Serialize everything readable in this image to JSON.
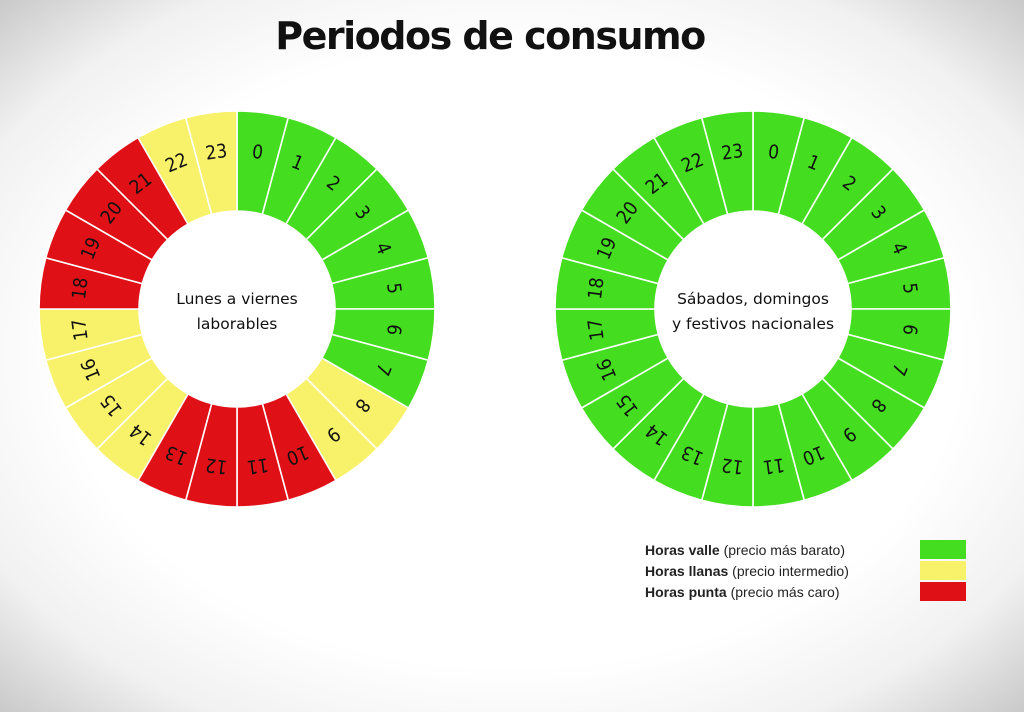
{
  "title": "Periodos de consumo",
  "chart_data": [
    {
      "type": "pie",
      "center_label": [
        "Lunes a viernes",
        "laborables"
      ],
      "categories": [
        "0",
        "1",
        "2",
        "3",
        "4",
        "5",
        "6",
        "7",
        "8",
        "9",
        "10",
        "11",
        "12",
        "13",
        "14",
        "15",
        "16",
        "17",
        "18",
        "19",
        "20",
        "21",
        "22",
        "23"
      ],
      "values": [
        1,
        1,
        1,
        1,
        1,
        1,
        1,
        1,
        1,
        1,
        1,
        1,
        1,
        1,
        1,
        1,
        1,
        1,
        1,
        1,
        1,
        1,
        1,
        1
      ],
      "periods": [
        "valle",
        "valle",
        "valle",
        "valle",
        "valle",
        "valle",
        "valle",
        "valle",
        "llanas",
        "llanas",
        "punta",
        "punta",
        "punta",
        "punta",
        "llanas",
        "llanas",
        "llanas",
        "llanas",
        "punta",
        "punta",
        "punta",
        "punta",
        "llanas",
        "llanas"
      ]
    },
    {
      "type": "pie",
      "center_label": [
        "Sábados, domingos",
        "y festivos nacionales"
      ],
      "categories": [
        "0",
        "1",
        "2",
        "3",
        "4",
        "5",
        "6",
        "7",
        "8",
        "9",
        "10",
        "11",
        "12",
        "13",
        "14",
        "15",
        "16",
        "17",
        "18",
        "19",
        "20",
        "21",
        "22",
        "23"
      ],
      "values": [
        1,
        1,
        1,
        1,
        1,
        1,
        1,
        1,
        1,
        1,
        1,
        1,
        1,
        1,
        1,
        1,
        1,
        1,
        1,
        1,
        1,
        1,
        1,
        1
      ],
      "periods": [
        "valle",
        "valle",
        "valle",
        "valle",
        "valle",
        "valle",
        "valle",
        "valle",
        "valle",
        "valle",
        "valle",
        "valle",
        "valle",
        "valle",
        "valle",
        "valle",
        "valle",
        "valle",
        "valle",
        "valle",
        "valle",
        "valle",
        "valle",
        "valle"
      ]
    }
  ],
  "legend": [
    {
      "key": "valle",
      "bold": "Horas valle",
      "detail": " (precio más barato)",
      "color": "#44dd1f"
    },
    {
      "key": "llanas",
      "bold": "Horas llanas",
      "detail": " (precio intermedio)",
      "color": "#f8f16a"
    },
    {
      "key": "punta",
      "bold": "Horas punta",
      "detail": " (precio más caro)",
      "color": "#e01017"
    }
  ]
}
